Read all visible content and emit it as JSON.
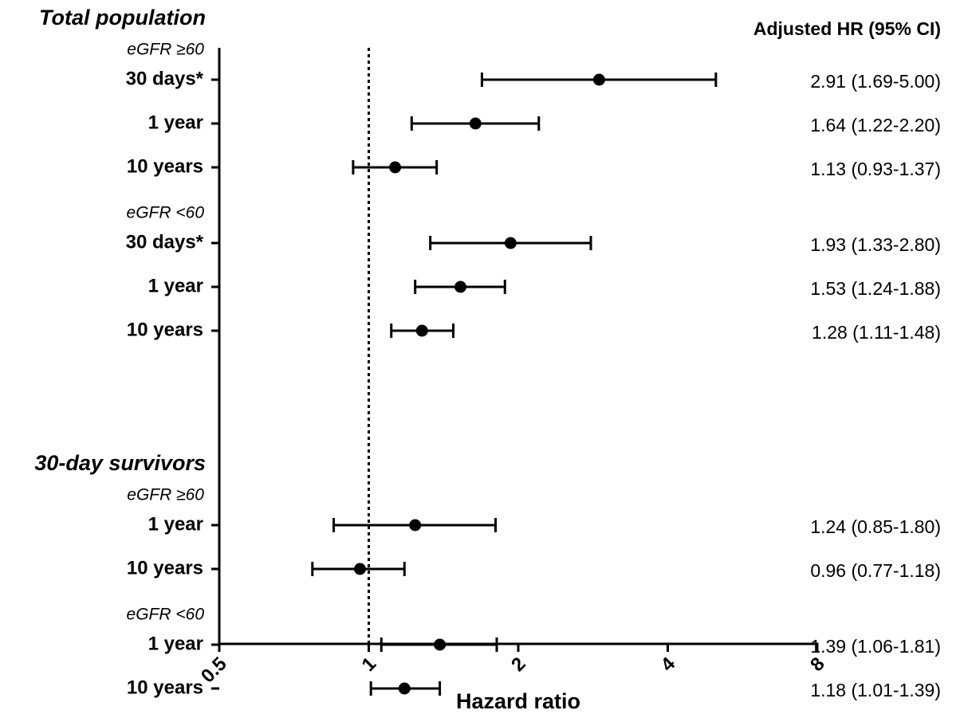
{
  "chart_data": {
    "type": "forest",
    "xlabel": "Hazard ratio",
    "column_header": "Adjusted HR (95% CI)",
    "log_x": true,
    "xlim": [
      0.5,
      8
    ],
    "xticks": [
      0.5,
      1,
      2,
      4,
      8
    ],
    "reference_line": 1,
    "color": "#000000",
    "groups": [
      {
        "name": "Total population",
        "subgroups": [
          {
            "name": "eGFR ≥60",
            "rows": [
              {
                "label": "30 days*",
                "hr": 2.91,
                "lower": 1.69,
                "upper": 5.0,
                "ci_label": "2.91 (1.69-5.00)"
              },
              {
                "label": "1 year",
                "hr": 1.64,
                "lower": 1.22,
                "upper": 2.2,
                "ci_label": "1.64 (1.22-2.20)"
              },
              {
                "label": "10 years",
                "hr": 1.13,
                "lower": 0.93,
                "upper": 1.37,
                "ci_label": "1.13 (0.93-1.37)"
              }
            ]
          },
          {
            "name": "eGFR <60",
            "rows": [
              {
                "label": "30 days*",
                "hr": 1.93,
                "lower": 1.33,
                "upper": 2.8,
                "ci_label": "1.93 (1.33-2.80)"
              },
              {
                "label": "1 year",
                "hr": 1.53,
                "lower": 1.24,
                "upper": 1.88,
                "ci_label": "1.53 (1.24-1.88)"
              },
              {
                "label": "10 years",
                "hr": 1.28,
                "lower": 1.11,
                "upper": 1.48,
                "ci_label": "1.28 (1.11-1.48)"
              }
            ]
          }
        ]
      },
      {
        "name": "30-day survivors",
        "subgroups": [
          {
            "name": "eGFR ≥60",
            "rows": [
              {
                "label": "1 year",
                "hr": 1.24,
                "lower": 0.85,
                "upper": 1.8,
                "ci_label": "1.24 (0.85-1.80)"
              },
              {
                "label": "10 years",
                "hr": 0.96,
                "lower": 0.77,
                "upper": 1.18,
                "ci_label": "0.96 (0.77-1.18)"
              }
            ]
          },
          {
            "name": "eGFR <60",
            "rows": [
              {
                "label": "1 year",
                "hr": 1.39,
                "lower": 1.06,
                "upper": 1.81,
                "ci_label": "1.39 (1.06-1.81)"
              },
              {
                "label": "10 years",
                "hr": 1.18,
                "lower": 1.01,
                "upper": 1.39,
                "ci_label": "1.18 (1.01-1.39)"
              }
            ]
          }
        ]
      }
    ]
  }
}
